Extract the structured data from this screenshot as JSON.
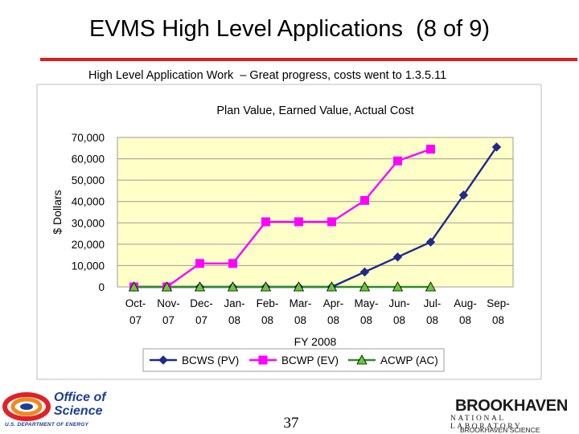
{
  "slide": {
    "title": "EVMS High Level Applications  (8 of 9)",
    "subtitle": "High Level Application Work  – Great progress, costs went to 1.3.5.11",
    "page_number": "37",
    "accent_color": "#e21b1b"
  },
  "logos": {
    "left": {
      "line1": "Office of",
      "line2": "Science",
      "line3": "U.S. DEPARTMENT OF ENERGY"
    },
    "right": {
      "line1": "BROOKHAVEN",
      "line2": "NATIONAL LABORATORY",
      "line3": "BROOKHAVEN SCIENCE"
    }
  },
  "chart_data": {
    "type": "line",
    "title": "Plan Value, Earned Value, Actual Cost",
    "xlabel": "FY 2008",
    "ylabel": "$ Dollars",
    "categories": [
      [
        "Oct-",
        "07"
      ],
      [
        "Nov-",
        "07"
      ],
      [
        "Dec-",
        "07"
      ],
      [
        "Jan-",
        "08"
      ],
      [
        "Feb-",
        "08"
      ],
      [
        "Mar-",
        "08"
      ],
      [
        "Apr-",
        "08"
      ],
      [
        "May-",
        "08"
      ],
      [
        "Jun-",
        "08"
      ],
      [
        "Jul-",
        "08"
      ],
      [
        "Aug-",
        "08"
      ],
      [
        "Sep-",
        "08"
      ]
    ],
    "ylim": [
      0,
      70000
    ],
    "yticks": [
      0,
      10000,
      20000,
      30000,
      40000,
      50000,
      60000,
      70000
    ],
    "ytick_labels": [
      "0",
      "10,000",
      "20,000",
      "30,000",
      "40,000",
      "50,000",
      "60,000",
      "70,000"
    ],
    "grid": true,
    "plot_background": "#ffffc8",
    "legend_position": "bottom",
    "series": [
      {
        "name": "BCWS (PV)",
        "color": "#1f2a8a",
        "marker": "diamond",
        "values": [
          0,
          0,
          0,
          0,
          0,
          0,
          0,
          7000,
          14000,
          21000,
          43000,
          65500
        ]
      },
      {
        "name": "BCWP (EV)",
        "color": "#ff00ff",
        "marker": "square",
        "values": [
          0,
          0,
          11000,
          11000,
          30500,
          30500,
          30500,
          40500,
          59000,
          64500,
          null,
          null
        ]
      },
      {
        "name": "ACWP (AC)",
        "color": "#2e8b2e",
        "marker": "triangle",
        "values": [
          0,
          0,
          0,
          0,
          0,
          0,
          0,
          0,
          0,
          0,
          null,
          null
        ]
      }
    ]
  }
}
